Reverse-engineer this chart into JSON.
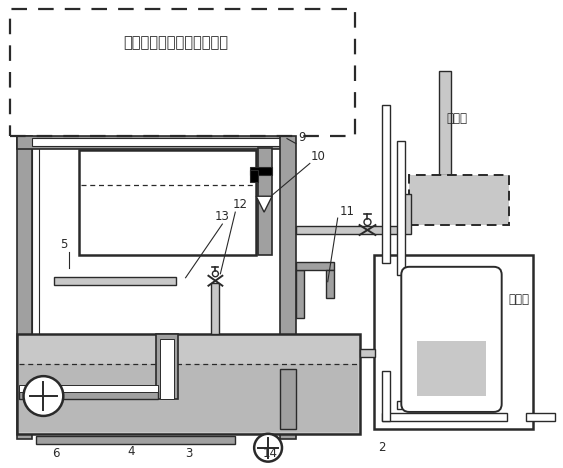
{
  "title": "由养殖单元组成的溢流系统",
  "label_zishui": "自来水",
  "label_xiashui": "下水道",
  "bg_color": "#ffffff",
  "gray": "#a0a0a0",
  "lgray": "#c8c8c8",
  "dgray": "#606060",
  "lc": "#2a2a2a",
  "water": "#b8b8b8"
}
